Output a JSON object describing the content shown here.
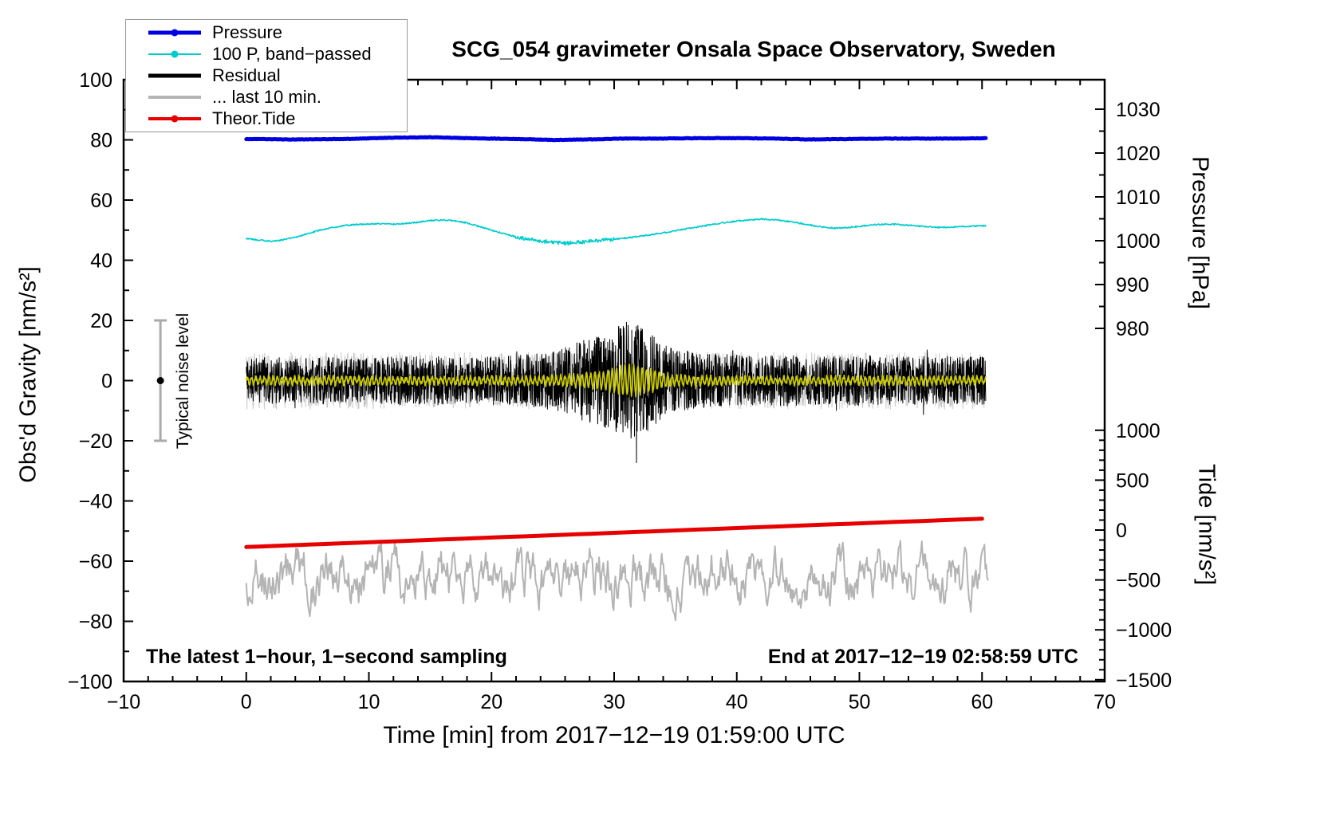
{
  "chart_data": {
    "type": "line",
    "title": "SCG_054 gravimeter Onsala Space Observatory, Sweden",
    "xlabel": "Time [min] from 2017−12−19 01:59:00 UTC",
    "annotations": {
      "sampling": "The latest 1−hour, 1−second sampling",
      "end_time": "End at 2017−12−19 02:58:59 UTC"
    },
    "noise_bar": {
      "label": "Typical noise level",
      "x_min": -7,
      "center": 0,
      "half_range": 20,
      "color": "#aaaaaa"
    },
    "axes": {
      "x": {
        "label": "Time [min] from 2017−12−19 01:59:00 UTC",
        "range": [
          -10,
          70
        ],
        "majors": [
          [
            -10,
            "−10"
          ],
          [
            0,
            "0"
          ],
          [
            10,
            "10"
          ],
          [
            20,
            "20"
          ],
          [
            30,
            "30"
          ],
          [
            40,
            "40"
          ],
          [
            50,
            "50"
          ],
          [
            60,
            "60"
          ],
          [
            70,
            "70"
          ]
        ],
        "minor_step": 2
      },
      "gravity": {
        "label": "Obs'd Gravity [nm/s²]",
        "range": [
          -100,
          100
        ],
        "majors": [
          [
            100,
            "100"
          ],
          [
            80,
            "80"
          ],
          [
            60,
            "60"
          ],
          [
            40,
            "40"
          ],
          [
            20,
            "20"
          ],
          [
            0,
            "0"
          ],
          [
            -20,
            "−20"
          ],
          [
            -40,
            "−40"
          ],
          [
            -60,
            "−60"
          ],
          [
            -80,
            "−80"
          ],
          [
            -100,
            "−100"
          ]
        ],
        "minor_step": 10
      },
      "pressure": {
        "label": "Pressure [hPa]",
        "majors": [
          [
            1030,
            "1030"
          ],
          [
            1020,
            "1020"
          ],
          [
            1010,
            "1010"
          ],
          [
            1000,
            "1000"
          ],
          [
            990,
            "990"
          ],
          [
            980,
            "980"
          ]
        ],
        "minor_step": 5
      },
      "tide": {
        "label": "Tide [nm/s²]",
        "majors": [
          [
            1000,
            "1000"
          ],
          [
            500,
            "500"
          ],
          [
            0,
            "0"
          ],
          [
            -500,
            "−500"
          ],
          [
            -1000,
            "−1000"
          ],
          [
            -1500,
            "−1500"
          ]
        ],
        "minor_step": 100
      }
    },
    "legend": [
      {
        "label": "Pressure",
        "color": "#0000e0",
        "line_width": 5,
        "dot": true
      },
      {
        "label": "100 P, band−passed",
        "color": "#00cccc",
        "line_width": 2,
        "dot": true
      },
      {
        "label": "Residual",
        "color": "#000000",
        "line_width": 5,
        "dot": false
      },
      {
        "label": "... last 10 min.",
        "color": "#b4b4b4",
        "line_width": 4,
        "dot": false
      },
      {
        "label": "Theor.Tide",
        "color": "#e60000",
        "line_width": 4,
        "dot": true
      }
    ],
    "series": [
      {
        "name": "pressure",
        "axis": "pressure",
        "color": "#0000e0",
        "width": 5,
        "z": 4,
        "render": "smooth",
        "dt": 0.1,
        "noise": 0.05,
        "seed": 11,
        "x_range": [
          0,
          60.3
        ],
        "points": [
          [
            0,
            1023.2
          ],
          [
            4,
            1023.1
          ],
          [
            8,
            1023.2
          ],
          [
            12,
            1023.5
          ],
          [
            15,
            1023.6
          ],
          [
            18,
            1023.4
          ],
          [
            22,
            1023.2
          ],
          [
            25,
            1023.0
          ],
          [
            28,
            1023.1
          ],
          [
            31,
            1023.3
          ],
          [
            34,
            1023.3
          ],
          [
            37,
            1023.4
          ],
          [
            40,
            1023.4
          ],
          [
            43,
            1023.3
          ],
          [
            46,
            1023.1
          ],
          [
            49,
            1023.2
          ],
          [
            52,
            1023.3
          ],
          [
            55,
            1023.3
          ],
          [
            58,
            1023.3
          ],
          [
            60.3,
            1023.4
          ]
        ]
      },
      {
        "name": "band_passed",
        "axis": "gravity",
        "color": "#00cccc",
        "width": 1.6,
        "z": 3,
        "render": "smooth",
        "dt": 0.05,
        "noise": 0.22,
        "seed": 22,
        "x_range": [
          0,
          60.3
        ],
        "noise_zones": [
          {
            "from": 22,
            "to": 30,
            "noise": 0.6
          }
        ],
        "points": [
          [
            0,
            47.3
          ],
          [
            1,
            46.7
          ],
          [
            2,
            46.3
          ],
          [
            3,
            46.8
          ],
          [
            4,
            47.6
          ],
          [
            5,
            48.8
          ],
          [
            6,
            50.0
          ],
          [
            7,
            50.9
          ],
          [
            8,
            51.5
          ],
          [
            9,
            51.9
          ],
          [
            10,
            52.1
          ],
          [
            11,
            52.2
          ],
          [
            12,
            52.0
          ],
          [
            13,
            52.2
          ],
          [
            14,
            52.6
          ],
          [
            15,
            53.2
          ],
          [
            16,
            53.4
          ],
          [
            17,
            53.1
          ],
          [
            18,
            52.4
          ],
          [
            19,
            51.2
          ],
          [
            20,
            50.0
          ],
          [
            21,
            48.8
          ],
          [
            22,
            47.8
          ],
          [
            23,
            47.0
          ],
          [
            24,
            46.4
          ],
          [
            25,
            46.0
          ],
          [
            26,
            45.6
          ],
          [
            27,
            45.9
          ],
          [
            28,
            46.3
          ],
          [
            29,
            46.6
          ],
          [
            30,
            47.0
          ],
          [
            31,
            47.4
          ],
          [
            32,
            47.9
          ],
          [
            33,
            48.5
          ],
          [
            34,
            49.1
          ],
          [
            35,
            49.8
          ],
          [
            36,
            50.5
          ],
          [
            37,
            51.2
          ],
          [
            38,
            51.9
          ],
          [
            39,
            52.5
          ],
          [
            40,
            53.0
          ],
          [
            41,
            53.4
          ],
          [
            42,
            53.7
          ],
          [
            43,
            53.5
          ],
          [
            44,
            53.0
          ],
          [
            45,
            52.4
          ],
          [
            46,
            51.7
          ],
          [
            47,
            51.0
          ],
          [
            48,
            50.7
          ],
          [
            49,
            50.9
          ],
          [
            50,
            51.3
          ],
          [
            51,
            51.7
          ],
          [
            52,
            52.0
          ],
          [
            53,
            51.9
          ],
          [
            54,
            51.6
          ],
          [
            55,
            51.3
          ],
          [
            56,
            51.0
          ],
          [
            57,
            50.9
          ],
          [
            58,
            51.1
          ],
          [
            59,
            51.3
          ],
          [
            60.3,
            51.5
          ]
        ]
      },
      {
        "name": "residual_background",
        "axis": "gravity",
        "color": "#c8c8c8",
        "width": 1,
        "z": 2,
        "render": "band",
        "dt": 0.03,
        "seed": 33,
        "spike_prob": 0.004,
        "spike_mult": 1.3,
        "x_range": [
          0,
          60.3
        ],
        "envelope": [
          [
            0,
            9.5
          ],
          [
            60.3,
            9.5
          ]
        ]
      },
      {
        "name": "residual",
        "axis": "gravity",
        "color": "#000000",
        "width": 1,
        "z": 5,
        "render": "band",
        "dt": 0.02,
        "seed": 44,
        "spike_prob": 0.006,
        "spike_mult": 1.45,
        "x_range": [
          0,
          60.3
        ],
        "envelope": [
          [
            0,
            7
          ],
          [
            2,
            8
          ],
          [
            4,
            7.5
          ],
          [
            6,
            8
          ],
          [
            8,
            7.5
          ],
          [
            10,
            7.5
          ],
          [
            12,
            8
          ],
          [
            14,
            8
          ],
          [
            16,
            8
          ],
          [
            18,
            7.5
          ],
          [
            20,
            8
          ],
          [
            22,
            8.5
          ],
          [
            24,
            9
          ],
          [
            26,
            11
          ],
          [
            27,
            13
          ],
          [
            28,
            14
          ],
          [
            29,
            15
          ],
          [
            30,
            17
          ],
          [
            31,
            20
          ],
          [
            32,
            19
          ],
          [
            33,
            16
          ],
          [
            34,
            12
          ],
          [
            35,
            10
          ],
          [
            36,
            10
          ],
          [
            37,
            9
          ],
          [
            38,
            9
          ],
          [
            40,
            8.5
          ],
          [
            42,
            8
          ],
          [
            44,
            8.5
          ],
          [
            46,
            8
          ],
          [
            48,
            8
          ],
          [
            50,
            8.5
          ],
          [
            52,
            8
          ],
          [
            54,
            8
          ],
          [
            56,
            8
          ],
          [
            58,
            8
          ],
          [
            60.3,
            8
          ]
        ]
      },
      {
        "name": "residual_smoothed",
        "axis": "gravity",
        "color": "#cccc00",
        "width": 1.7,
        "z": 6,
        "render": "osc",
        "dt": 0.03,
        "period": 0.35,
        "noise": 0.75,
        "seed": 55,
        "x_range": [
          0,
          60.3
        ],
        "envelope": [
          [
            0,
            1.3
          ],
          [
            10,
            1.3
          ],
          [
            20,
            1.3
          ],
          [
            24,
            1.5
          ],
          [
            26,
            1.8
          ],
          [
            28,
            2.6
          ],
          [
            29,
            3.2
          ],
          [
            30,
            4.5
          ],
          [
            31,
            6.0
          ],
          [
            32,
            5.6
          ],
          [
            33,
            4.2
          ],
          [
            34,
            2.8
          ],
          [
            35,
            2.0
          ],
          [
            36,
            1.7
          ],
          [
            38,
            1.5
          ],
          [
            40,
            1.4
          ],
          [
            45,
            1.3
          ],
          [
            50,
            1.3
          ],
          [
            55,
            1.3
          ],
          [
            60.3,
            1.3
          ]
        ]
      },
      {
        "name": "residual_last10",
        "axis": "gravity",
        "color": "#b4b4b4",
        "width": 2,
        "z": 1,
        "render": "walk",
        "dt": 0.07,
        "base": -65,
        "scale": 22,
        "seed": 66,
        "x_range": [
          0,
          60.5
        ]
      },
      {
        "name": "theor_tide",
        "axis": "tide",
        "color": "#e60000",
        "width": 5,
        "z": 7,
        "render": "smooth",
        "dt": 1,
        "noise": 0,
        "seed": 77,
        "x_range": [
          0,
          60.3
        ],
        "points": [
          [
            0,
            -170
          ],
          [
            15,
            -99
          ],
          [
            30,
            -28
          ],
          [
            45,
            44
          ],
          [
            60.3,
            115
          ]
        ]
      }
    ]
  }
}
